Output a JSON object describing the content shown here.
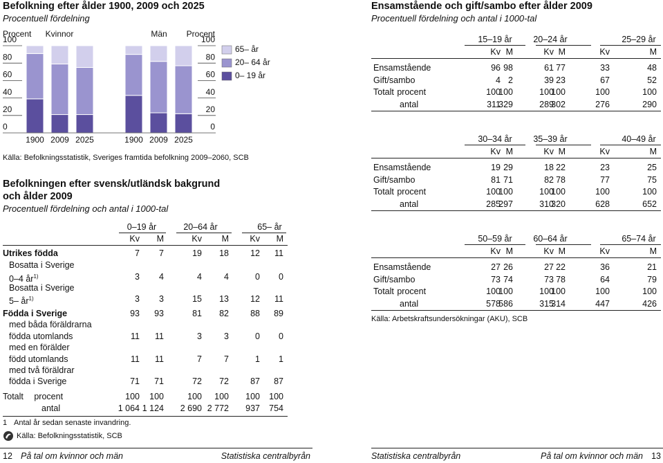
{
  "chart_data": {
    "type": "bar",
    "stacked": true,
    "title": "Befolkning efter ålder 1900, 2009 och 2025",
    "subtitle": "Procentuell fördelning",
    "y_label_left": "Procent",
    "y_label_right": "Procent",
    "groups": [
      "Kvinnor",
      "Män"
    ],
    "categories": [
      "1900",
      "2009",
      "2025",
      "1900",
      "2009",
      "2025"
    ],
    "ylim": [
      0,
      100
    ],
    "yticks": [
      0,
      20,
      40,
      60,
      80,
      100
    ],
    "series": [
      {
        "name": "0– 19 år",
        "color": "#5b4f9e",
        "values": [
          39,
          21,
          21,
          43,
          23,
          22
        ]
      },
      {
        "name": "20– 64 år",
        "color": "#9a94cf",
        "values": [
          52,
          58,
          54,
          47,
          59,
          55
        ]
      },
      {
        "name": "65– år",
        "color": "#d2cfec",
        "values": [
          9,
          21,
          25,
          10,
          18,
          23
        ]
      }
    ],
    "source": "Källa: Befolkningsstatistik, Sveriges framtida befolkning 2009–2060, SCB"
  },
  "background": {
    "title_lines": [
      "Befolkningen efter svensk/utländsk bakgrund",
      "och ålder 2009"
    ],
    "subtitle": "Procentuell fördelning och antal i 1000-tal",
    "age_groups": [
      "0–19 år",
      "20–64 år",
      "65– år"
    ],
    "sex_labels": [
      "Kv",
      "M",
      "Kv",
      "M",
      "Kv",
      "M"
    ],
    "rows": [
      {
        "label": "Utrikes födda",
        "bold": true,
        "values": [
          7,
          7,
          19,
          18,
          12,
          11
        ]
      },
      {
        "label": "Bosatta i Sverige",
        "indent": true
      },
      {
        "label": "0–4 år",
        "note": "1)",
        "indent": true,
        "values": [
          3,
          4,
          4,
          4,
          0,
          0
        ]
      },
      {
        "label": "Bosatta i Sverige",
        "indent": true
      },
      {
        "label": "5– år",
        "note": "1)",
        "indent": true,
        "values": [
          3,
          3,
          15,
          13,
          12,
          11
        ]
      },
      {
        "label": "Födda i Sverige",
        "bold": true,
        "values": [
          93,
          93,
          81,
          82,
          88,
          89
        ]
      },
      {
        "label": "med båda föräldrarna",
        "indent": true
      },
      {
        "label": "födda utomlands",
        "indent": true,
        "values": [
          11,
          11,
          3,
          3,
          0,
          0
        ]
      },
      {
        "label": "med en förälder",
        "indent": true
      },
      {
        "label": "född utomlands",
        "indent": true,
        "values": [
          11,
          11,
          7,
          7,
          1,
          1
        ]
      },
      {
        "label": "med två föräldrar",
        "indent": true
      },
      {
        "label": "födda i Sverige",
        "indent": true,
        "values": [
          71,
          71,
          72,
          72,
          87,
          87
        ]
      },
      {
        "label": "Totalt procent",
        "values": [
          100,
          100,
          100,
          100,
          100,
          100
        ]
      },
      {
        "label": "antal",
        "sub": true,
        "values": [
          "1 064",
          "1 124",
          "2 690",
          "2 772",
          937,
          754
        ]
      }
    ],
    "footnote_number": "1",
    "footnote": "Antal år sedan senaste invandring.",
    "source": "Källa: Befolkningsstatistik, SCB"
  },
  "marital": {
    "title": "Ensamstående och gift/sambo efter ålder 2009",
    "subtitle": "Procentuell fördelning och antal i 1000-tal",
    "row_labels": [
      "Ensamstående",
      "Gift/sambo",
      "Totalt procent",
      "antal"
    ],
    "tables": [
      {
        "age_groups": [
          "15–19 år",
          "20–24 år",
          "25–29 år"
        ],
        "sex_labels": [
          "Kv",
          "M",
          "Kv",
          "M",
          "Kv",
          "M"
        ],
        "rows": [
          [
            96,
            98,
            61,
            77,
            33,
            48
          ],
          [
            4,
            2,
            39,
            23,
            67,
            52
          ],
          [
            100,
            100,
            100,
            100,
            100,
            100
          ],
          [
            311,
            329,
            289,
            302,
            276,
            290
          ]
        ]
      },
      {
        "age_groups": [
          "30–34 år",
          "35–39 år",
          "40–49 år"
        ],
        "sex_labels": [
          "Kv",
          "M",
          "Kv",
          "M",
          "Kv",
          "M"
        ],
        "rows": [
          [
            19,
            29,
            18,
            22,
            23,
            25
          ],
          [
            81,
            71,
            82,
            78,
            77,
            75
          ],
          [
            100,
            100,
            100,
            100,
            100,
            100
          ],
          [
            285,
            297,
            310,
            320,
            628,
            652
          ]
        ]
      },
      {
        "age_groups": [
          "50–59 år",
          "60–64 år",
          "65–74 år"
        ],
        "sex_labels": [
          "Kv",
          "M",
          "Kv",
          "M",
          "Kv",
          "M"
        ],
        "rows": [
          [
            27,
            26,
            27,
            22,
            36,
            21
          ],
          [
            73,
            74,
            73,
            78,
            64,
            79
          ],
          [
            100,
            100,
            100,
            100,
            100,
            100
          ],
          [
            578,
            586,
            315,
            314,
            447,
            426
          ]
        ]
      }
    ],
    "source": "Källa: Arbetskraftsundersökningar (AKU), SCB"
  },
  "footer": {
    "left_page": "12",
    "left_title": "På tal om kvinnor och män",
    "left_publisher": "Statistiska centralbyrån",
    "right_publisher": "Statistiska centralbyrån",
    "right_title": "På tal om kvinnor och män",
    "right_page": "13"
  }
}
